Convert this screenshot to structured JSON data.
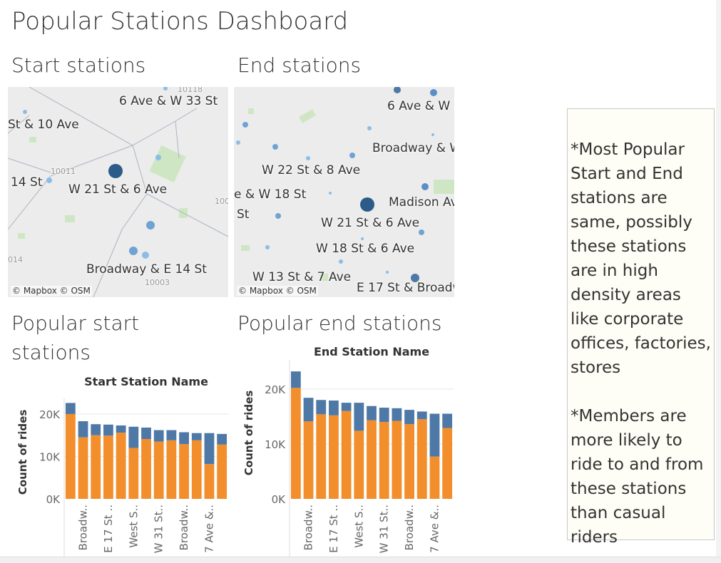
{
  "page_title": "Popular Stations Dashboard",
  "sections": {
    "start_map_title": "Start stations",
    "end_map_title": "End stations",
    "start_bars_title_line1": "Popular start",
    "start_bars_title_line2": "stations",
    "end_bars_title": "Popular end stations"
  },
  "maps": {
    "attribution": "© Mapbox © OSM",
    "start": {
      "labels": [
        "6 Ave & W 33 St",
        "St & 10 Ave",
        "14 St",
        "W 21 St & 6 Ave",
        "Broadway & E 14 St"
      ],
      "zip_labels": [
        "10011",
        "10003",
        "014",
        "100",
        "10118"
      ]
    },
    "end": {
      "labels": [
        "6 Ave & W 3",
        "Broadway & W",
        "W 22 St & 8 Ave",
        "e & W 18 St",
        "Madison Av",
        "St",
        "W 21 St & 6 Ave",
        "W 18 St & 6 Ave",
        "W 13 St & 7 Ave",
        "E 17 St & Broadw"
      ]
    }
  },
  "note": {
    "paragraph1": "*Most Popular Start and End stations are same, possibly these stations are in high density areas like corporate offices, factories, stores",
    "paragraph2": "*Members are more likely to ride to and from these stations than casual riders"
  },
  "colors": {
    "member": "#f28e2b",
    "casual": "#4e79a7",
    "map_dot_large": "#2c5b8a",
    "map_dot_small": "#8cbde6",
    "map_bg": "#ececec",
    "park": "#cfe6c4"
  },
  "chart_data": [
    {
      "type": "bar",
      "stacked": true,
      "title": "Start Station Name",
      "ylabel": "Count of rides",
      "ylim": [
        0,
        22000
      ],
      "yticks": [
        0,
        10000,
        20000
      ],
      "ytick_labels": [
        "0K",
        "10K",
        "20K"
      ],
      "category_labels_visible": [
        "Broadw..",
        "E 17 St ..",
        "West S..",
        "W 31 St..",
        "Broadw..",
        "7 Ave &.."
      ],
      "series": [
        {
          "color": "#f28e2b",
          "values": [
            20000,
            14500,
            15000,
            14900,
            15600,
            12000,
            14100,
            13500,
            13800,
            12900,
            13800,
            8200,
            12800
          ]
        },
        {
          "color": "#4e79a7",
          "values": [
            2600,
            3800,
            2600,
            2600,
            1700,
            5000,
            2700,
            2700,
            2400,
            2800,
            1700,
            7300,
            2500
          ]
        }
      ]
    },
    {
      "type": "bar",
      "stacked": true,
      "title": "End Station Name",
      "ylabel": "Count of rides",
      "ylim": [
        0,
        24000
      ],
      "yticks": [
        0,
        10000,
        20000
      ],
      "ytick_labels": [
        "0K",
        "10K",
        "20K"
      ],
      "category_labels_visible": [
        "Broadw..",
        "E 17 St ..",
        "West S..",
        "W 31 St..",
        "Broadw..",
        "7 Ave &.."
      ],
      "series": [
        {
          "color": "#f28e2b",
          "values": [
            20200,
            14100,
            15400,
            15200,
            16000,
            12400,
            14300,
            14000,
            14200,
            13600,
            14500,
            7700,
            12900
          ]
        },
        {
          "color": "#4e79a7",
          "values": [
            3000,
            4300,
            2600,
            2700,
            1500,
            5100,
            2600,
            2600,
            2300,
            2600,
            1400,
            7800,
            2600
          ]
        }
      ]
    }
  ]
}
